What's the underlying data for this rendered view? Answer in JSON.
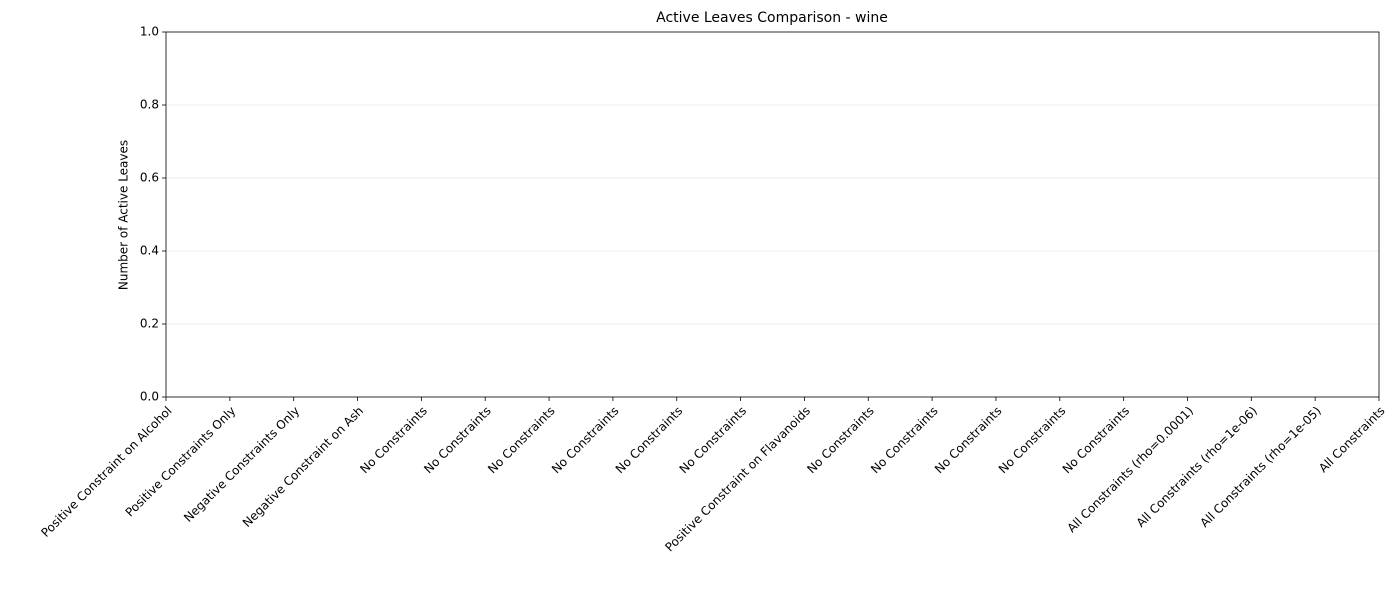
{
  "chart_data": {
    "type": "bar",
    "title": "Active Leaves Comparison - wine",
    "y_label": "Number of Active Leaves",
    "categories": [
      "Positive Constraint on Alcohol",
      "Positive Constraints Only",
      "Negative Constraints Only",
      "Negative Constraint on Ash",
      "No Constraints",
      "No Constraints",
      "No Constraints",
      "No Constraints",
      "No Constraints",
      "No Constraints",
      "Positive Constraint on Flavanoids",
      "No Constraints",
      "No Constraints",
      "No Constraints",
      "No Constraints",
      "No Constraints",
      "All Constraints (rho=0.0001)",
      "All Constraints (rho=1e-06)",
      "All Constraints (rho=1e-05)",
      "All Constraints"
    ],
    "values": [
      0,
      0,
      0,
      0,
      0,
      0,
      0,
      0,
      0,
      0,
      0,
      0,
      0,
      0,
      0,
      0,
      0,
      0,
      0,
      0
    ],
    "color": "#1f77b4",
    "ylim": [
      0,
      1
    ],
    "yticks": [
      {
        "value": 0,
        "label": "0.0"
      },
      {
        "value": 0.2,
        "label": "0.2"
      },
      {
        "value": 0.4,
        "label": "0.4"
      },
      {
        "value": 0.6,
        "label": "0.6"
      },
      {
        "value": 0.8,
        "label": "0.8"
      },
      {
        "value": 1,
        "label": "1.0"
      }
    ],
    "grid": true
  }
}
